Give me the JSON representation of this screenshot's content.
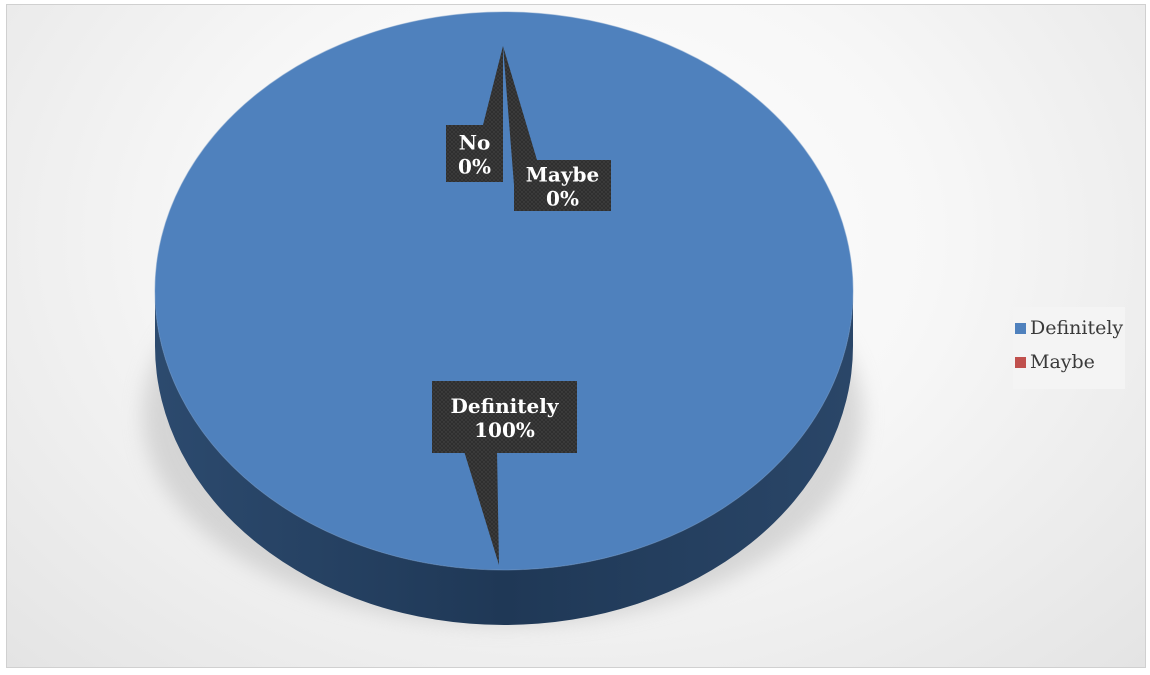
{
  "chart_data": {
    "type": "pie",
    "categories": [
      "Definitely",
      "Maybe",
      "No"
    ],
    "values": [
      100,
      0,
      0
    ],
    "value_labels": [
      "100%",
      "0%",
      "0%"
    ],
    "colors": [
      "#4f81bd",
      "#c0504d",
      "#9bbb59"
    ],
    "title": "",
    "style": "3d",
    "legend_position": "right",
    "legend_entries": [
      "Definitely",
      "Maybe"
    ]
  }
}
